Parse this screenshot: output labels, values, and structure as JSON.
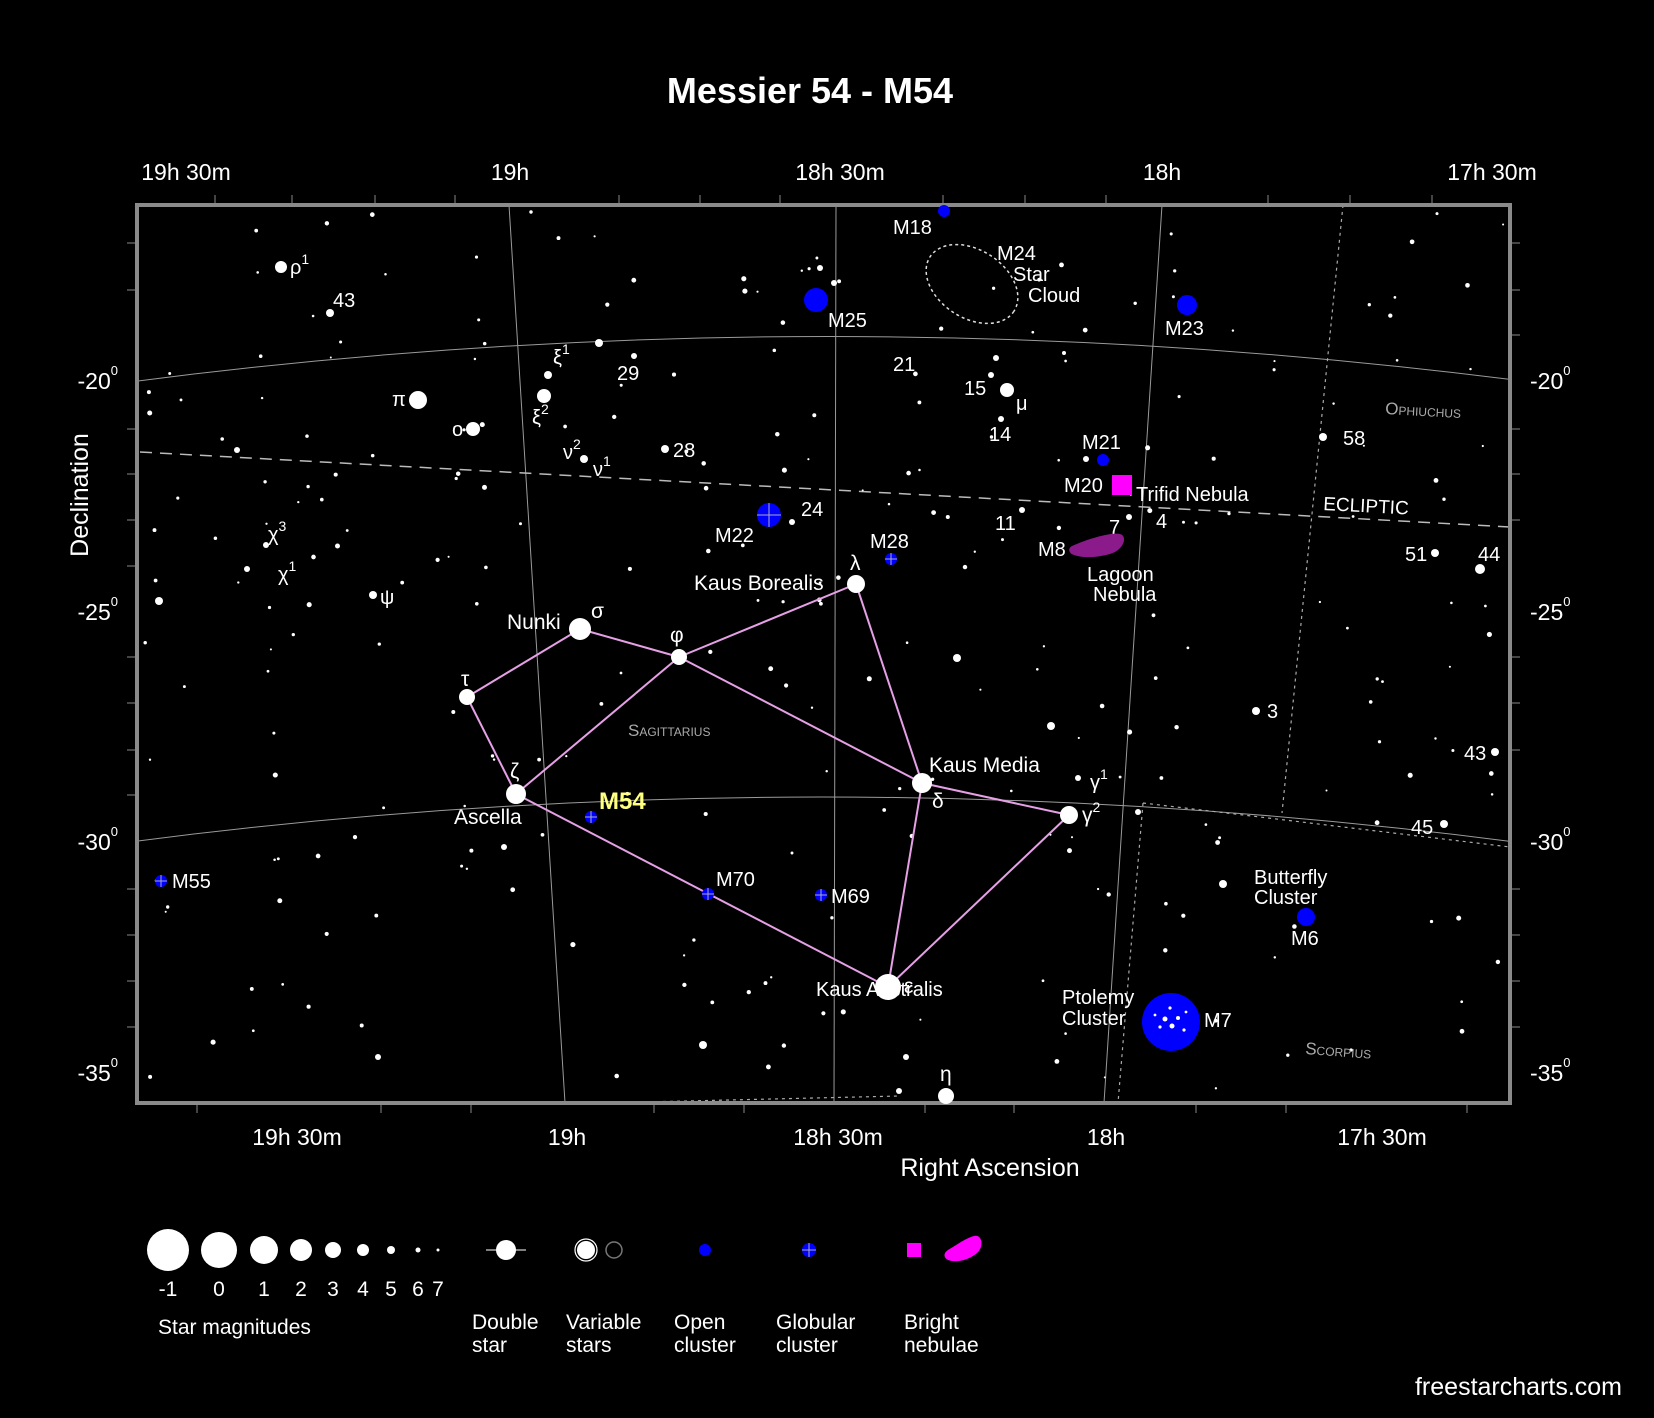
{
  "title": "Messier 54 - M54",
  "x_axis_title": "Right Ascension",
  "y_axis_title": "Declination",
  "credit": "freestarcharts.com",
  "colors": {
    "background": "#000000",
    "open_cluster": "#0000ff",
    "nebula": "#ff00ff",
    "constellation_line": "#e6a0e6",
    "highlight": "#ffff80"
  },
  "ra_top_labels": [
    "19h 30m",
    "19h",
    "18h 30m",
    "18h",
    "17h 30m"
  ],
  "ra_bottom_labels": [
    "19h 30m",
    "19h",
    "18h 30m",
    "18h",
    "17h 30m"
  ],
  "dec_labels": [
    {
      "value": "-20",
      "sup": "0"
    },
    {
      "value": "-25",
      "sup": "0"
    },
    {
      "value": "-30",
      "sup": "0"
    },
    {
      "value": "-35",
      "sup": "0"
    }
  ],
  "constellation_names": [
    "Sagittarius",
    "Ophiuchus",
    "Scorpius"
  ],
  "ecliptic_label": "ECLIPTIC",
  "target": "M54",
  "named_stars": [
    {
      "greek": "σ",
      "name": "Nunki"
    },
    {
      "greek": "φ",
      "name": ""
    },
    {
      "greek": "λ",
      "name": "Kaus Borealis"
    },
    {
      "greek": "τ",
      "name": ""
    },
    {
      "greek": "ζ",
      "name": "Ascella"
    },
    {
      "greek": "δ",
      "name": "Kaus Media"
    },
    {
      "greek": "ε",
      "name": "Kaus Australis"
    },
    {
      "greek": "γ",
      "name": "",
      "sup": "2"
    },
    {
      "greek": "η",
      "name": ""
    }
  ],
  "star_labels": [
    {
      "text": "ρ",
      "sup": "1"
    },
    {
      "text": "43"
    },
    {
      "text": "ξ",
      "sup": "1"
    },
    {
      "text": "29"
    },
    {
      "text": "π"
    },
    {
      "text": "ξ",
      "sup": "2"
    },
    {
      "text": "ο"
    },
    {
      "text": "ν",
      "sup": "2"
    },
    {
      "text": "ν",
      "sup": "1"
    },
    {
      "text": "28"
    },
    {
      "text": "21"
    },
    {
      "text": "15"
    },
    {
      "text": "μ"
    },
    {
      "text": "14"
    },
    {
      "text": "58"
    },
    {
      "text": "χ",
      "sup": "3"
    },
    {
      "text": "χ",
      "sup": "1"
    },
    {
      "text": "ψ"
    },
    {
      "text": "24"
    },
    {
      "text": "11"
    },
    {
      "text": "7"
    },
    {
      "text": "4"
    },
    {
      "text": "51"
    },
    {
      "text": "44"
    },
    {
      "text": "3"
    },
    {
      "text": "43"
    },
    {
      "text": "γ",
      "sup": "1"
    },
    {
      "text": "45"
    }
  ],
  "objects": [
    {
      "id": "M18",
      "type": "open cluster"
    },
    {
      "id": "M24",
      "name": "Star Cloud",
      "type": "star cloud"
    },
    {
      "id": "M25",
      "type": "open cluster"
    },
    {
      "id": "M23",
      "type": "open cluster"
    },
    {
      "id": "M21",
      "type": "open cluster"
    },
    {
      "id": "M20",
      "name": "Trifid Nebula",
      "type": "bright nebula"
    },
    {
      "id": "M8",
      "name": "Lagoon Nebula",
      "type": "bright nebula"
    },
    {
      "id": "M22",
      "type": "globular cluster"
    },
    {
      "id": "M28",
      "type": "globular cluster"
    },
    {
      "id": "M54",
      "type": "globular cluster"
    },
    {
      "id": "M55",
      "type": "globular cluster"
    },
    {
      "id": "M70",
      "type": "globular cluster"
    },
    {
      "id": "M69",
      "type": "globular cluster"
    },
    {
      "id": "M6",
      "name": "Butterfly Cluster",
      "type": "open cluster"
    },
    {
      "id": "M7",
      "name": "Ptolemy Cluster",
      "type": "open cluster"
    }
  ],
  "legend": {
    "magnitudes_label": "Star magnitudes",
    "magnitudes": [
      "-1",
      "0",
      "1",
      "2",
      "3",
      "4",
      "5",
      "6",
      "7"
    ],
    "double_star": "Double star",
    "variable_stars": "Variable stars",
    "open_cluster": "Open cluster",
    "globular_cluster": "Globular cluster",
    "bright_nebulae": "Bright nebulae"
  }
}
